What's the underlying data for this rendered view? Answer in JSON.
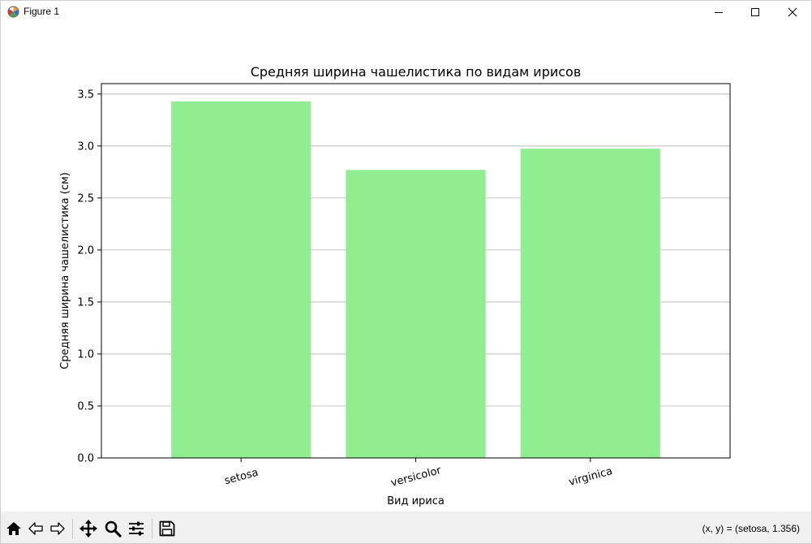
{
  "window": {
    "title": "Figure 1",
    "app_icon": "matplotlib-figure-icon",
    "controls": [
      {
        "name": "minimize-icon"
      },
      {
        "name": "maximize-icon"
      },
      {
        "name": "close-icon"
      }
    ]
  },
  "toolbar": {
    "buttons": [
      {
        "icon": "home-icon"
      },
      {
        "icon": "back-arrow-icon"
      },
      {
        "icon": "forward-arrow-icon"
      },
      {
        "icon": "pan-move-icon"
      },
      {
        "icon": "zoom-magnifier-icon"
      },
      {
        "icon": "configure-subplots-icon"
      },
      {
        "icon": "save-disk-icon"
      }
    ],
    "coordinates": "(x, y) = (setosa, 1.356)"
  },
  "chart_data": {
    "type": "bar",
    "title": "Средняя ширина чашелистика по видам ирисов",
    "xlabel": "Вид ириса",
    "ylabel": "Средняя ширина чашелистика (см)",
    "categories": [
      "setosa",
      "versicolor",
      "virginica"
    ],
    "values": [
      3.428,
      2.77,
      2.974
    ],
    "ylim": [
      0,
      3.6
    ],
    "yticks": [
      0.0,
      0.5,
      1.0,
      1.5,
      2.0,
      2.5,
      3.0,
      3.5
    ],
    "ytick_labels": [
      "0.0",
      "0.5",
      "1.0",
      "1.5",
      "2.0",
      "2.5",
      "3.0",
      "3.5"
    ],
    "bar_color": "#90ee90",
    "grid": {
      "y": true,
      "x": false
    },
    "xtick_rotation_deg": 15
  }
}
